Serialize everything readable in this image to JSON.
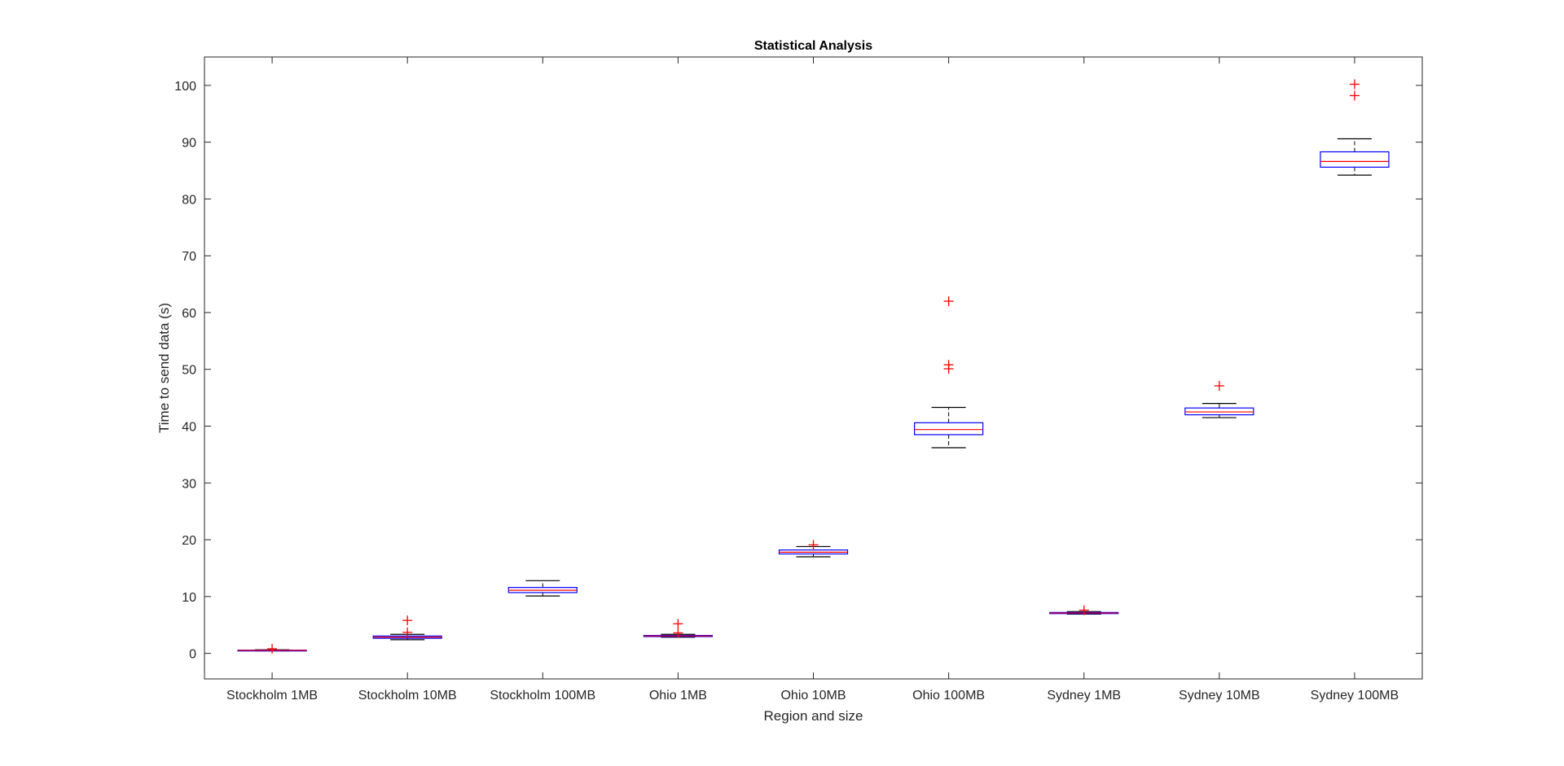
{
  "chart_data": {
    "type": "boxplot",
    "title": "Statistical Analysis",
    "xlabel": "Region and size",
    "ylabel": "Time to send data (s)",
    "ylim": [
      -4.5,
      105
    ],
    "yticks": [
      0,
      10,
      20,
      30,
      40,
      50,
      60,
      70,
      80,
      90,
      100
    ],
    "grid": false,
    "categories": [
      "Stockholm 1MB",
      "Stockholm 10MB",
      "Stockholm 100MB",
      "Ohio 1MB",
      "Ohio 10MB",
      "Ohio 100MB",
      "Sydney 1MB",
      "Sydney 10MB",
      "Sydney 100MB"
    ],
    "boxes": [
      {
        "whisker_low": 0.45,
        "q1": 0.5,
        "median": 0.52,
        "q3": 0.56,
        "whisker_high": 0.62,
        "outliers": [
          0.8
        ]
      },
      {
        "whisker_low": 2.4,
        "q1": 2.65,
        "median": 2.85,
        "q3": 3.05,
        "whisker_high": 3.35,
        "outliers": [
          3.7,
          5.8
        ]
      },
      {
        "whisker_low": 10.1,
        "q1": 10.7,
        "median": 11.1,
        "q3": 11.6,
        "whisker_high": 12.8,
        "outliers": []
      },
      {
        "whisker_low": 2.85,
        "q1": 2.95,
        "median": 3.05,
        "q3": 3.15,
        "whisker_high": 3.35,
        "outliers": [
          3.6,
          5.2
        ]
      },
      {
        "whisker_low": 17.0,
        "q1": 17.5,
        "median": 17.8,
        "q3": 18.2,
        "whisker_high": 18.8,
        "outliers": [
          19.1
        ]
      },
      {
        "whisker_low": 36.2,
        "q1": 38.5,
        "median": 39.4,
        "q3": 40.6,
        "whisker_high": 43.3,
        "outliers": [
          50.1,
          50.8,
          62.0
        ]
      },
      {
        "whisker_low": 6.9,
        "q1": 7.0,
        "median": 7.1,
        "q3": 7.2,
        "whisker_high": 7.35,
        "outliers": [
          7.6
        ]
      },
      {
        "whisker_low": 41.5,
        "q1": 42.0,
        "median": 42.5,
        "q3": 43.2,
        "whisker_high": 44.0,
        "outliers": [
          47.1
        ]
      },
      {
        "whisker_low": 84.2,
        "q1": 85.6,
        "median": 86.6,
        "q3": 88.3,
        "whisker_high": 90.6,
        "outliers": [
          98.2,
          100.2
        ]
      }
    ],
    "colors": {
      "box": "#0000ff",
      "median": "#ff0000",
      "whisker": "#000000",
      "outlier": "#ff0000",
      "axis": "#262626",
      "text": "#262626"
    }
  }
}
